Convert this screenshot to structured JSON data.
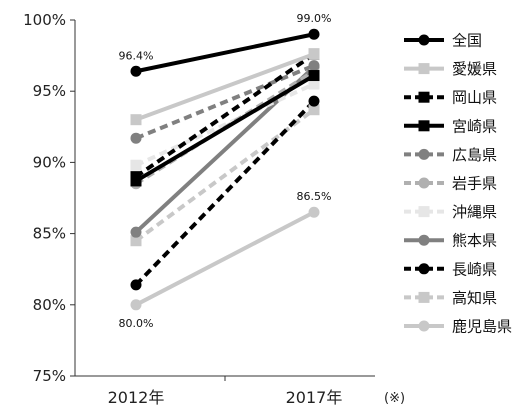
{
  "chart_data": {
    "type": "line",
    "categories": [
      "2012年",
      "2017年"
    ],
    "note": "(※)",
    "ylim": [
      75,
      100
    ],
    "y_ticks": [
      "75%",
      "80%",
      "85%",
      "90%",
      "95%",
      "100%"
    ],
    "legend_position": "right",
    "series": [
      {
        "name": "全国",
        "values": [
          96.4,
          99.0
        ],
        "color": "#000000",
        "dash": "solid",
        "marker": "circle"
      },
      {
        "name": "愛媛県",
        "values": [
          93.0,
          97.6
        ],
        "color": "#c8c8c8",
        "dash": "solid",
        "marker": "square"
      },
      {
        "name": "岡山県",
        "values": [
          89.0,
          97.6
        ],
        "color": "#000000",
        "dash": "dashed",
        "marker": "square"
      },
      {
        "name": "宮崎県",
        "values": [
          88.7,
          96.1
        ],
        "color": "#000000",
        "dash": "solid",
        "marker": "square"
      },
      {
        "name": "広島県",
        "values": [
          91.7,
          96.8
        ],
        "color": "#808080",
        "dash": "dashed",
        "marker": "circle"
      },
      {
        "name": "岩手県",
        "values": [
          88.5,
          96.4
        ],
        "color": "#b0b0b0",
        "dash": "dashed",
        "marker": "circle"
      },
      {
        "name": "沖縄県",
        "values": [
          89.8,
          95.5
        ],
        "color": "#e6e6e6",
        "dash": "dashed",
        "marker": "square"
      },
      {
        "name": "熊本県",
        "values": [
          85.1,
          96.7
        ],
        "color": "#808080",
        "dash": "solid",
        "marker": "circle"
      },
      {
        "name": "長崎県",
        "values": [
          81.4,
          94.3
        ],
        "color": "#000000",
        "dash": "dashed",
        "marker": "circle"
      },
      {
        "name": "高知県",
        "values": [
          84.5,
          93.7
        ],
        "color": "#c8c8c8",
        "dash": "dashed",
        "marker": "square"
      },
      {
        "name": "鹿児島県",
        "values": [
          80.0,
          86.5
        ],
        "color": "#c8c8c8",
        "dash": "solid",
        "marker": "circle"
      }
    ],
    "data_labels": [
      {
        "series": 0,
        "point": 0,
        "text": "96.4%",
        "pos": "above"
      },
      {
        "series": 0,
        "point": 1,
        "text": "99.0%",
        "pos": "above"
      },
      {
        "series": 10,
        "point": 1,
        "text": "86.5%",
        "pos": "above"
      },
      {
        "series": 10,
        "point": 0,
        "text": "80.0%",
        "pos": "below"
      }
    ]
  }
}
